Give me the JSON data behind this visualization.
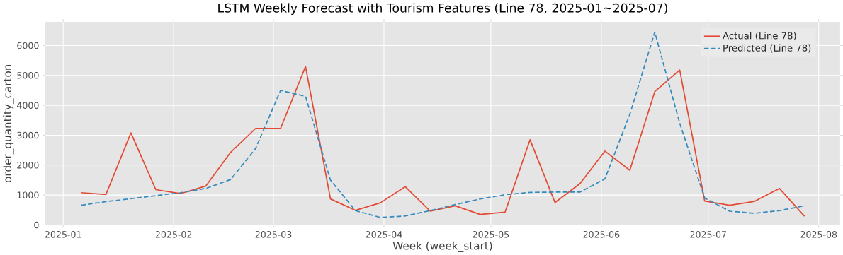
{
  "chart_data": {
    "type": "line",
    "title": "LSTM Weekly Forecast with Tourism Features (Line 78, 2025-01~2025-07)",
    "xlabel": "Week (week_start)",
    "ylabel": "order_quantity_carton",
    "x": [
      "2025-01-06",
      "2025-01-13",
      "2025-01-20",
      "2025-01-27",
      "2025-02-03",
      "2025-02-10",
      "2025-02-17",
      "2025-02-24",
      "2025-03-03",
      "2025-03-10",
      "2025-03-17",
      "2025-03-24",
      "2025-03-31",
      "2025-04-07",
      "2025-04-14",
      "2025-04-21",
      "2025-04-28",
      "2025-05-05",
      "2025-05-12",
      "2025-05-19",
      "2025-05-26",
      "2025-06-02",
      "2025-06-09",
      "2025-06-16",
      "2025-06-23",
      "2025-06-30",
      "2025-07-07",
      "2025-07-14",
      "2025-07-21",
      "2025-07-28"
    ],
    "series": [
      {
        "name": "Actual (Line 78)",
        "color": "#e24a33",
        "line_style": "solid",
        "values": [
          1080,
          1020,
          3080,
          1180,
          1050,
          1300,
          2430,
          3230,
          3230,
          5300,
          870,
          490,
          740,
          1280,
          460,
          640,
          350,
          430,
          2850,
          750,
          1380,
          2470,
          1830,
          4460,
          5180,
          800,
          660,
          790,
          1220,
          290
        ]
      },
      {
        "name": "Predicted (Line 78)",
        "color": "#348abd",
        "line_style": "dashed",
        "values": [
          660,
          780,
          880,
          980,
          1080,
          1220,
          1520,
          2560,
          4500,
          4300,
          1500,
          480,
          250,
          300,
          480,
          680,
          870,
          1010,
          1090,
          1100,
          1100,
          1540,
          3700,
          6450,
          3400,
          900,
          460,
          390,
          480,
          640
        ]
      }
    ],
    "xlim": [
      "2024-12-27",
      "2025-08-07"
    ],
    "xticks": [
      {
        "value": "2025-01-01",
        "label": "2025-01"
      },
      {
        "value": "2025-02-01",
        "label": "2025-02"
      },
      {
        "value": "2025-03-01",
        "label": "2025-03"
      },
      {
        "value": "2025-04-01",
        "label": "2025-04"
      },
      {
        "value": "2025-05-01",
        "label": "2025-05"
      },
      {
        "value": "2025-06-01",
        "label": "2025-06"
      },
      {
        "value": "2025-07-01",
        "label": "2025-07"
      },
      {
        "value": "2025-08-01",
        "label": "2025-08"
      }
    ],
    "ylim": [
      0,
      6790
    ],
    "yticks": [
      0,
      1000,
      2000,
      3000,
      4000,
      5000,
      6000
    ],
    "grid": true,
    "legend": "top right",
    "marker": "none"
  }
}
